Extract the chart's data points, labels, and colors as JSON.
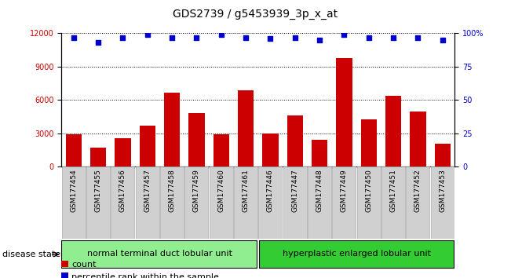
{
  "title": "GDS2739 / g5453939_3p_x_at",
  "samples": [
    "GSM177454",
    "GSM177455",
    "GSM177456",
    "GSM177457",
    "GSM177458",
    "GSM177459",
    "GSM177460",
    "GSM177461",
    "GSM177446",
    "GSM177447",
    "GSM177448",
    "GSM177449",
    "GSM177450",
    "GSM177451",
    "GSM177452",
    "GSM177453"
  ],
  "counts": [
    2900,
    1700,
    2600,
    3700,
    6700,
    4800,
    2900,
    6900,
    3000,
    4600,
    2400,
    9800,
    4300,
    6400,
    5000,
    2100
  ],
  "percentiles": [
    97,
    93,
    97,
    99,
    97,
    97,
    99,
    97,
    96,
    97,
    95,
    99,
    97,
    97,
    97,
    95
  ],
  "group1_label": "normal terminal duct lobular unit",
  "group2_label": "hyperplastic enlarged lobular unit",
  "group1_count": 8,
  "group2_count": 8,
  "bar_color": "#cc0000",
  "dot_color": "#0000cc",
  "ylim_left": [
    0,
    12000
  ],
  "ylim_right": [
    0,
    100
  ],
  "yticks_left": [
    0,
    3000,
    6000,
    9000,
    12000
  ],
  "yticks_right": [
    0,
    25,
    50,
    75,
    100
  ],
  "group1_color": "#90ee90",
  "group2_color": "#33cc33",
  "title_fontsize": 10,
  "tick_fontsize": 7,
  "disease_state_fontsize": 8,
  "legend_fontsize": 8
}
